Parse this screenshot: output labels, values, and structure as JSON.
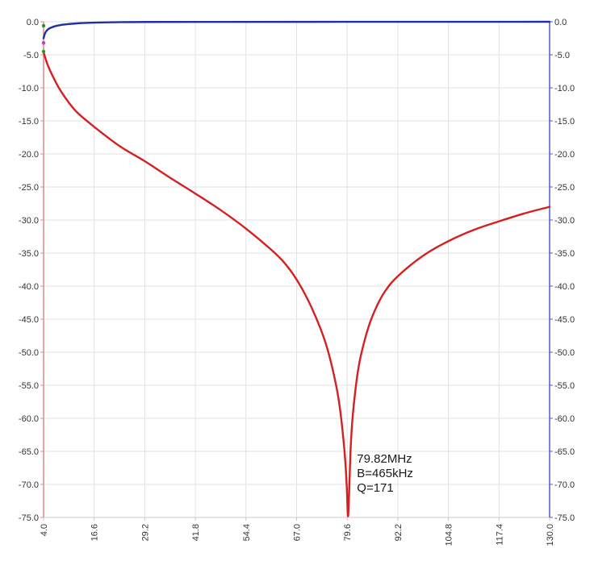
{
  "chart_data": {
    "type": "line",
    "title": "",
    "xlabel": "",
    "ylabel": "",
    "xlim": [
      4.0,
      130.0
    ],
    "ylim": [
      -75.0,
      0.0
    ],
    "y2lim": [
      -75.0,
      0.0
    ],
    "grid": true,
    "legend": "none",
    "x_ticks": [
      "4.0",
      "16.6",
      "29.2",
      "41.8",
      "54.4",
      "67.0",
      "79.6",
      "92.2",
      "104.8",
      "117.4",
      "130.0"
    ],
    "y_ticks_left": [
      "0.0",
      "-5.0",
      "-10.0",
      "-15.0",
      "-20.0",
      "-25.0",
      "-30.0",
      "-35.0",
      "-40.0",
      "-45.0",
      "-50.0",
      "-55.0",
      "-60.0",
      "-65.0",
      "-70.0",
      "-75.0"
    ],
    "y_ticks_right": [
      "0.0",
      "-5.0",
      "-10.0",
      "-15.0",
      "-20.0",
      "-25.0",
      "-30.0",
      "-35.0",
      "-40.0",
      "-45.0",
      "-50.0",
      "-55.0",
      "-60.0",
      "-65.0",
      "-70.0",
      "-75.0"
    ],
    "series": [
      {
        "color": "#d42020",
        "axis": "left",
        "x": [
          4.0,
          5.0,
          6.5,
          8.0,
          10.0,
          12.5,
          16.6,
          22.9,
          29.2,
          35.5,
          41.8,
          48.1,
          54.4,
          60.7,
          64.0,
          67.0,
          70.0,
          73.0,
          75.0,
          77.0,
          78.0,
          79.0,
          79.5,
          79.82,
          80.2,
          80.5,
          81.0,
          82.0,
          83.0,
          85.0,
          87.0,
          89.0,
          92.2,
          98.5,
          104.8,
          111.1,
          117.4,
          123.7,
          130.0
        ],
        "y": [
          -4.6,
          -6.5,
          -8.5,
          -10.2,
          -12.0,
          -13.8,
          -15.9,
          -18.8,
          -21.1,
          -23.6,
          -26.0,
          -28.5,
          -31.3,
          -34.5,
          -36.5,
          -39.0,
          -42.3,
          -46.5,
          -50.2,
          -55.5,
          -59.5,
          -65.5,
          -70.5,
          -74.8,
          -69.0,
          -64.0,
          -59.5,
          -54.0,
          -50.5,
          -46.0,
          -43.0,
          -40.8,
          -38.5,
          -35.4,
          -33.2,
          -31.5,
          -30.2,
          -29.0,
          -28.0
        ]
      },
      {
        "color": "#1f2fa8",
        "axis": "right",
        "x": [
          4.0,
          4.3,
          4.7,
          5.2,
          6.0,
          7.0,
          8.5,
          10.0,
          12.0,
          14.5,
          17.5,
          22.0,
          30.0,
          130.0
        ],
        "y": [
          -2.5,
          -1.85,
          -1.4,
          -1.1,
          -0.85,
          -0.65,
          -0.47,
          -0.36,
          -0.26,
          -0.18,
          -0.12,
          -0.07,
          -0.03,
          0.0
        ]
      }
    ],
    "markers": [
      {
        "x": 4.0,
        "y": -4.5,
        "color": "#1aa01a"
      },
      {
        "x": 4.0,
        "y": -3.2,
        "color": "#c83cc8"
      },
      {
        "x": 4.0,
        "y": -0.6,
        "color": "#1aa01a"
      }
    ],
    "annotation": {
      "lines": [
        "79.82MHz",
        "B=465kHz",
        "Q=171"
      ],
      "anchor_x": 79.82
    },
    "colors": {
      "grid": "#e2e2e2",
      "left_axis": "#e08a8a",
      "right_axis": "#4a5fd0",
      "bottom_axis": "#c8c8c8"
    }
  }
}
